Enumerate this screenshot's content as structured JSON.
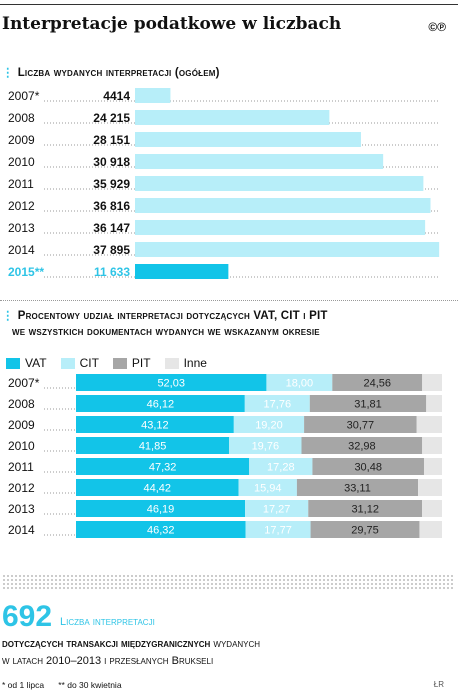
{
  "title": "Interpretacje podatkowe w liczbach",
  "brand": "©℗",
  "chart1": {
    "subtitle": "Liczba wydanych interpretacji (ogółem)",
    "type": "bar",
    "categories": [
      "2007*",
      "2008",
      "2009",
      "2010",
      "2011",
      "2012",
      "2013",
      "2014",
      "2015**"
    ],
    "values": [
      4414,
      24215,
      28151,
      30918,
      35929,
      36816,
      36147,
      37895,
      11633
    ],
    "value_labels": [
      "4414",
      "24 215",
      "28 151",
      "30 918",
      "35 929",
      "36 816",
      "36 147",
      "37 895",
      "11 633"
    ],
    "xlim": [
      0,
      38000
    ]
  },
  "chart2": {
    "subtitle_line1": "Procentowy udział interpretacji dotyczących VAT, CIT i PIT",
    "subtitle_line2": "we wszystkich dokumentach wydanych we wskazanym okresie",
    "type": "bar",
    "stacked": true,
    "categories": [
      "2007*",
      "2008",
      "2009",
      "2010",
      "2011",
      "2012",
      "2013",
      "2014"
    ],
    "series": [
      {
        "name": "VAT",
        "values": [
          52.03,
          46.12,
          43.12,
          41.85,
          47.32,
          44.42,
          46.19,
          46.32
        ],
        "labels": [
          "52,03",
          "46,12",
          "43,12",
          "41,85",
          "47,32",
          "44,42",
          "46,19",
          "46,32"
        ]
      },
      {
        "name": "CIT",
        "values": [
          18.0,
          17.76,
          19.2,
          19.76,
          17.28,
          15.94,
          17.27,
          17.77
        ],
        "labels": [
          "18,00",
          "17,76",
          "19,20",
          "19,76",
          "17,28",
          "15,94",
          "17,27",
          "17,77"
        ]
      },
      {
        "name": "PIT",
        "values": [
          24.56,
          31.81,
          30.77,
          32.98,
          30.48,
          33.11,
          31.12,
          29.75
        ],
        "labels": [
          "24,56",
          "31,81",
          "30,77",
          "32,98",
          "30,48",
          "33,11",
          "31,12",
          "29,75"
        ]
      },
      {
        "name": "Inne",
        "values": [
          5.41,
          4.31,
          6.91,
          5.41,
          4.92,
          6.53,
          5.42,
          6.16
        ],
        "labels": [
          "",
          "",
          "",
          "",
          "",
          "",
          "",
          ""
        ]
      }
    ]
  },
  "colors": {
    "vat": "#12c4e8",
    "cit": "#b7eef9",
    "pit": "#a6a6a6",
    "inne": "#e6e6e6",
    "bar1": "#b7eef9",
    "bar1_highlight": "#12c4e8",
    "accent": "#2ec4e6"
  },
  "stat": {
    "number": "692",
    "label": "Liczba interpretacji",
    "line1_bold": "dotyczących transakcji międzygranicznych",
    "line1_rest": " wydanych",
    "line2": "w latach 2010–2013 i przesłanych Brukseli"
  },
  "footnotes": {
    "a": "* od 1 lipca",
    "b": "** do 30 kwietnia"
  },
  "credit": "ŁR"
}
